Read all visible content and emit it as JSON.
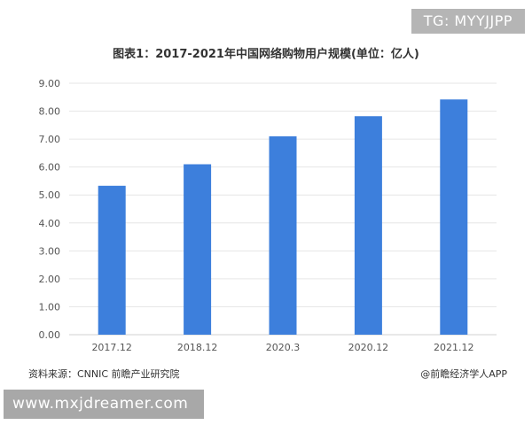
{
  "overlay": {
    "tg_label": "TG: MYYJJPP",
    "site_label": "www.mxjdreamer.com"
  },
  "footer": {
    "source": "资料来源：CNNIC 前瞻产业研究院",
    "brand": "@前瞻经济学人APP"
  },
  "chart_data": {
    "type": "bar",
    "title": "图表1：2017-2021年中国网络购物用户规模(单位：亿人)",
    "categories": [
      "2017.12",
      "2018.12",
      "2020.3",
      "2020.12",
      "2021.12"
    ],
    "values": [
      5.33,
      6.1,
      7.1,
      7.82,
      8.42
    ],
    "ylim": [
      0,
      9
    ],
    "yticks": [
      "0.00",
      "1.00",
      "2.00",
      "3.00",
      "4.00",
      "5.00",
      "6.00",
      "7.00",
      "8.00",
      "9.00"
    ],
    "grid": true,
    "bar_color": "#3d7fdc",
    "xlabel": "",
    "ylabel": ""
  }
}
